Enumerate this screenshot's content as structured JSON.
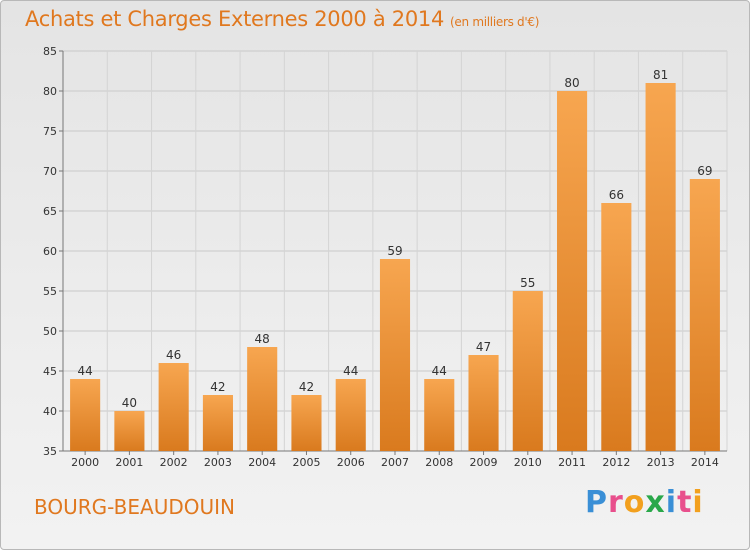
{
  "title": "Achats et Charges Externes 2000 à 2014",
  "unit": "(en milliers d'€)",
  "commune": "BOURG-BEAUDOUIN",
  "logo": "Proxiti",
  "colors": {
    "bar_light": "#f7a650",
    "bar_dark": "#d97a1e",
    "accent": "#e0781f"
  },
  "chart_data": {
    "type": "bar",
    "categories": [
      "2000",
      "2001",
      "2002",
      "2003",
      "2004",
      "2005",
      "2006",
      "2007",
      "2008",
      "2009",
      "2010",
      "2011",
      "2012",
      "2013",
      "2014"
    ],
    "values": [
      44,
      40,
      46,
      42,
      48,
      42,
      44,
      59,
      44,
      47,
      55,
      80,
      66,
      81,
      69
    ],
    "title": "Achats et Charges Externes 2000 à 2014",
    "subtitle": "(en milliers d'€)",
    "xlabel": "",
    "ylabel": "",
    "ylim": [
      35,
      85
    ],
    "yticks": [
      35,
      40,
      45,
      50,
      55,
      60,
      65,
      70,
      75,
      80,
      85
    ],
    "grid": true,
    "legend": "none"
  }
}
